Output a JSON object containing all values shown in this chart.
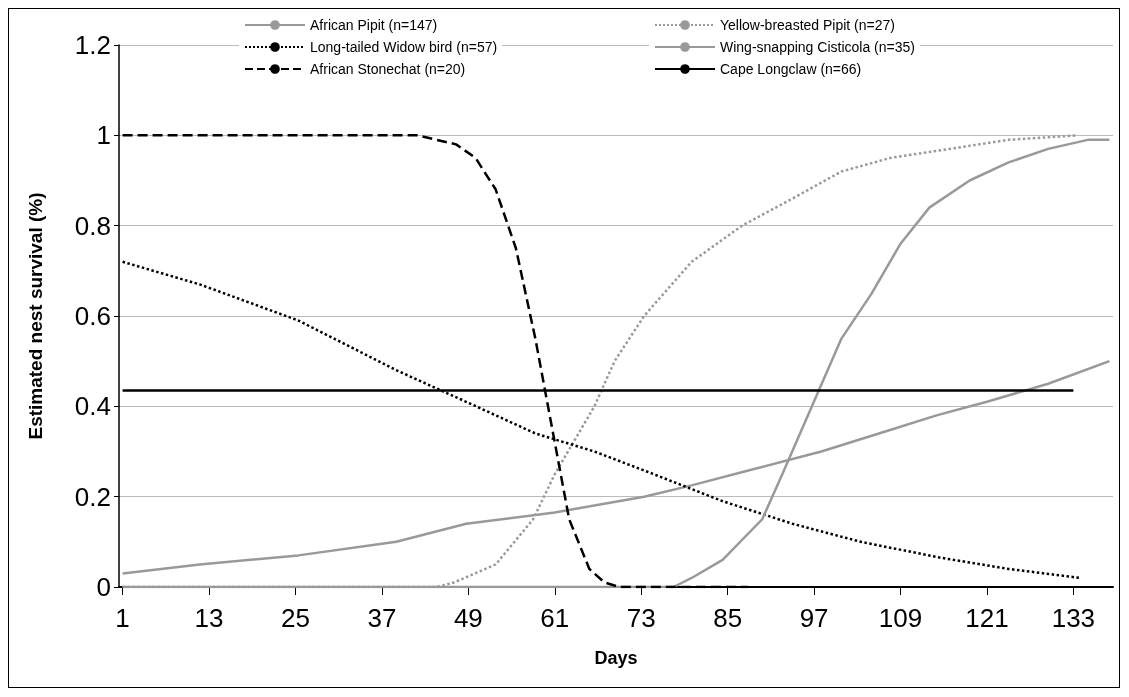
{
  "chart_data": {
    "type": "line",
    "xlabel": "Days",
    "ylabel": "Estimated nest survival (%)",
    "xlim": [
      0.5,
      138.5
    ],
    "xticks": [
      1,
      13,
      25,
      37,
      49,
      61,
      73,
      85,
      97,
      109,
      121,
      133
    ],
    "ylim": [
      0,
      1.2
    ],
    "yticks": [
      0,
      0.2,
      0.4,
      0.6,
      0.8,
      1,
      1.2
    ],
    "grid": "y",
    "legend": "top",
    "marker": "none",
    "series": [
      {
        "name": "African Pipit (n=147)",
        "color": "#999999",
        "line_style": "solid",
        "x": [
          1,
          11.7,
          25.4,
          39,
          48.7,
          61,
          73.4,
          80,
          88.4,
          98,
          106,
          114,
          121,
          129.5,
          138
        ],
        "values": [
          0.03,
          0.05,
          0.07,
          0.1,
          0.14,
          0.165,
          0.2,
          0.225,
          0.26,
          0.3,
          0.34,
          0.38,
          0.41,
          0.45,
          0.5
        ]
      },
      {
        "name": "Yellow-breasted Pipit (n=27)",
        "color": "#999999",
        "line_style": "dotted",
        "x": [
          1,
          44.6,
          47,
          52.8,
          58,
          61,
          66.5,
          69.3,
          73.4,
          80,
          87,
          94,
          100.8,
          107.6,
          115.8,
          124,
          133.6
        ],
        "values": [
          0,
          0,
          0.01,
          0.05,
          0.15,
          0.25,
          0.4,
          0.5,
          0.6,
          0.72,
          0.8,
          0.86,
          0.92,
          0.95,
          0.97,
          0.99,
          1
        ]
      },
      {
        "name": "Long-tailed Widow bird (n=57)",
        "color": "#000000",
        "line_style": "dotted",
        "x": [
          1,
          11.7,
          25.4,
          39,
          48.7,
          58.3,
          66.5,
          74.7,
          84.3,
          94,
          103.5,
          114.5,
          124,
          134
        ],
        "values": [
          0.72,
          0.67,
          0.59,
          0.48,
          0.41,
          0.34,
          0.3,
          0.25,
          0.19,
          0.14,
          0.1,
          0.065,
          0.04,
          0.02
        ]
      },
      {
        "name": "Wing-snapping Cisticola (n=35)",
        "color": "#999999",
        "line_style": "solid",
        "x": [
          1,
          77.5,
          80,
          84.3,
          89.8,
          92.6,
          96.7,
          100.8,
          105,
          109,
          113,
          118.6,
          124,
          129.5,
          135,
          138
        ],
        "values": [
          0,
          0,
          0.02,
          0.06,
          0.15,
          0.25,
          0.4,
          0.55,
          0.65,
          0.76,
          0.84,
          0.9,
          0.94,
          0.97,
          0.99,
          0.99
        ]
      },
      {
        "name": "African Stonechat (n=20)",
        "color": "#000000",
        "line_style": "dashed",
        "x": [
          1,
          41.9,
          47.3,
          50,
          52.8,
          55.6,
          58.3,
          61,
          63,
          65.8,
          67.9,
          70,
          87.8
        ],
        "values": [
          1,
          1,
          0.98,
          0.95,
          0.88,
          0.75,
          0.55,
          0.32,
          0.15,
          0.04,
          0.01,
          0,
          0
        ]
      },
      {
        "name": "Cape Longclaw (n=66)",
        "color": "#000000",
        "line_style": "solid",
        "x": [
          1,
          133
        ],
        "values": [
          0.435,
          0.435
        ]
      }
    ]
  }
}
